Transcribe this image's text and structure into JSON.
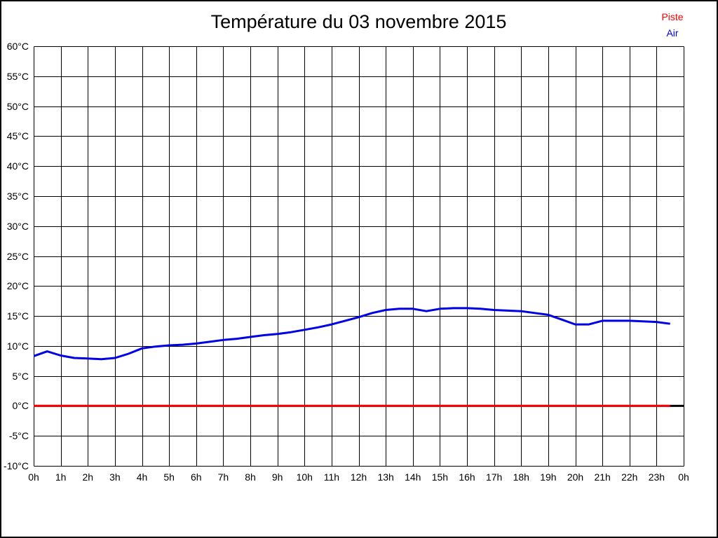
{
  "page": {
    "title": "Température du 03 novembre 2015",
    "background_color": "#FFFFFF",
    "frame_color": "#000000"
  },
  "legend": {
    "position": "top-right",
    "items": [
      {
        "label": "Piste",
        "color": "#FF0000"
      },
      {
        "label": "Air",
        "color": "#0000E6"
      }
    ]
  },
  "chart_data": {
    "type": "line",
    "title": "Température du 03 novembre 2015",
    "xlabel": "",
    "ylabel": "",
    "x_unit": "hour of day",
    "y_unit": "°C",
    "xlim": [
      0,
      24
    ],
    "ylim": [
      -10,
      60
    ],
    "x_tick_step": 1,
    "y_tick_step": 5,
    "grid": true,
    "grid_color": "#000000",
    "x_tick_labels": [
      "0h",
      "1h",
      "2h",
      "3h",
      "4h",
      "5h",
      "6h",
      "7h",
      "8h",
      "9h",
      "10h",
      "11h",
      "12h",
      "13h",
      "14h",
      "15h",
      "16h",
      "17h",
      "18h",
      "19h",
      "20h",
      "21h",
      "22h",
      "23h",
      "0h"
    ],
    "y_tick_labels": [
      "60°C",
      "55°C",
      "50°C",
      "45°C",
      "40°C",
      "35°C",
      "30°C",
      "25°C",
      "20°C",
      "15°C",
      "10°C",
      "5°C",
      "0°C",
      "-5°C",
      "-10°C"
    ],
    "zero_axis": {
      "value": 0,
      "color": "#000000",
      "width": 3
    },
    "legend_position": "top-right",
    "series": [
      {
        "name": "Piste",
        "color": "#FF0000",
        "width": 3,
        "x": [
          0,
          23.5
        ],
        "values": [
          0.0,
          0.0
        ]
      },
      {
        "name": "Air",
        "color": "#0000E6",
        "width": 3,
        "x": [
          0,
          0.5,
          1,
          1.5,
          2,
          2.5,
          3,
          3.5,
          4,
          4.5,
          5,
          5.5,
          6,
          6.5,
          7,
          7.5,
          8,
          8.5,
          9,
          9.5,
          10,
          10.5,
          11,
          11.5,
          12,
          12.5,
          13,
          13.5,
          14,
          14.5,
          15,
          15.5,
          16,
          16.5,
          17,
          17.5,
          18,
          18.5,
          19,
          19.5,
          20,
          20.5,
          21,
          21.5,
          22,
          22.5,
          23,
          23.5
        ],
        "values": [
          8.3,
          9.1,
          8.4,
          8.0,
          7.9,
          7.8,
          8.0,
          8.7,
          9.6,
          9.9,
          10.1,
          10.2,
          10.4,
          10.7,
          11.0,
          11.2,
          11.5,
          11.8,
          12.0,
          12.3,
          12.7,
          13.1,
          13.6,
          14.2,
          14.8,
          15.5,
          16.0,
          16.2,
          16.2,
          15.8,
          16.2,
          16.3,
          16.3,
          16.2,
          16.0,
          15.9,
          15.8,
          15.5,
          15.2,
          14.4,
          13.6,
          13.6,
          14.2,
          14.2,
          14.2,
          14.1,
          14.0,
          13.7
        ]
      }
    ]
  }
}
